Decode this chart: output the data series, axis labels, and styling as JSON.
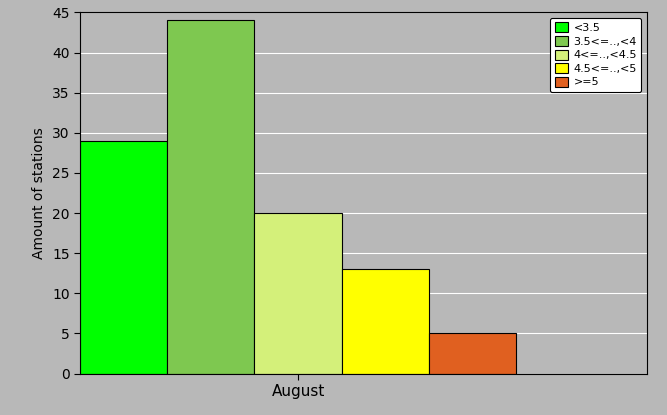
{
  "bars": [
    {
      "label": "<3.5",
      "value": 29,
      "color": "#00ff00"
    },
    {
      "label": "3.5<=..<4",
      "value": 44,
      "color": "#7ec850"
    },
    {
      "label": "4<=..<4.5",
      "value": 20,
      "color": "#d4f07a"
    },
    {
      "label": "4.5<=..<5",
      "value": 13,
      "color": "#ffff00"
    },
    {
      "label": ">=5",
      "value": 5,
      "color": "#e06020"
    }
  ],
  "ylabel": "Amount of stations",
  "xlabel": "August",
  "ylim": [
    0,
    45
  ],
  "yticks": [
    0,
    5,
    10,
    15,
    20,
    25,
    30,
    35,
    40,
    45
  ],
  "background_color": "#b8b8b8",
  "legend_labels": [
    "<3.5",
    "3.5<=..,<4",
    "4<=..,<4.5",
    "4.5<=..,<5",
    ">=5"
  ],
  "legend_colors": [
    "#00ff00",
    "#7ec850",
    "#d4f07a",
    "#ffff00",
    "#e06020"
  ],
  "fig_width": 6.67,
  "fig_height": 4.15,
  "dpi": 100
}
